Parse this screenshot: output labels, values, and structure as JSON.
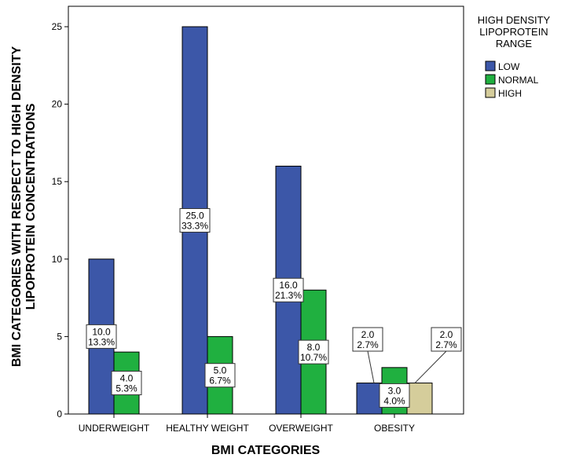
{
  "chart_data": {
    "type": "bar",
    "categories": [
      "UNDERWEIGHT",
      "HEALTHY WEIGHT",
      "OVERWEIGHT",
      "OBESITY"
    ],
    "xlabel": "BMI CATEGORIES",
    "ylabel_lines": [
      "BMI CATEGORIES WITH RESPECT TO HIGH DENSITY",
      "LIPOPROTEIN CONCENTRATIONS"
    ],
    "ylim": [
      0,
      27
    ],
    "yticks": [
      0,
      5,
      10,
      15,
      20,
      25
    ],
    "grid": false,
    "legend": {
      "title_lines": [
        "HIGH DENSITY",
        "LIPOPROTEIN",
        "RANGE"
      ],
      "placement": "right"
    },
    "series": [
      {
        "name": "LOW",
        "color": "#3c57a8",
        "values": [
          10,
          25,
          16,
          2
        ],
        "labels": [
          [
            "10.0",
            "13.3%"
          ],
          [
            "25.0",
            "33.3%"
          ],
          [
            "16.0",
            "21.3%"
          ],
          [
            "2.0",
            "2.7%"
          ]
        ]
      },
      {
        "name": "NORMAL",
        "color": "#20b040",
        "values": [
          4,
          5,
          8,
          3
        ],
        "labels": [
          [
            "4.0",
            "5.3%"
          ],
          [
            "5.0",
            "6.7%"
          ],
          [
            "8.0",
            "10.7%"
          ],
          [
            "3.0",
            "4.0%"
          ]
        ]
      },
      {
        "name": "HIGH",
        "color": "#d5cd9b",
        "values": [
          null,
          null,
          null,
          2
        ],
        "labels": [
          null,
          null,
          null,
          [
            "2.0",
            "2.7%"
          ]
        ]
      }
    ]
  }
}
